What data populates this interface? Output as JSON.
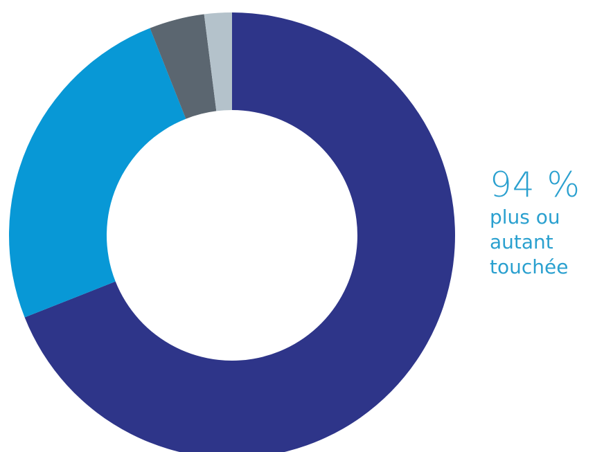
{
  "chart_data": {
    "type": "pie",
    "categories": [
      "",
      "",
      "",
      ""
    ],
    "values": [
      69,
      25,
      4,
      2
    ],
    "colors": [
      "#2e3589",
      "#0898d6",
      "#5b6670",
      "#b4c2cb"
    ],
    "hole": true,
    "title": "",
    "annotation": {
      "value": "94 %",
      "lines": [
        "plus ou",
        "autant",
        "touchée"
      ]
    }
  }
}
